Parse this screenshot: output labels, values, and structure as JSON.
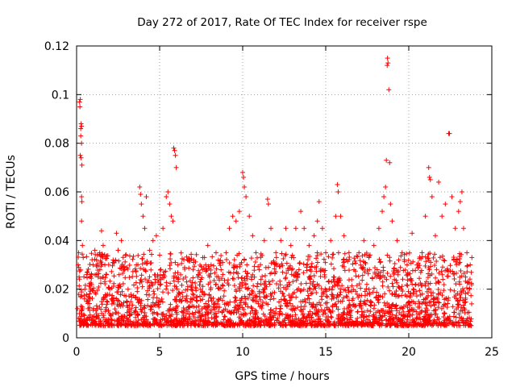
{
  "chart_data": {
    "type": "scatter",
    "title": "Day 272 of 2017, Rate Of TEC Index for receiver rspe",
    "xlabel": "GPS time / hours",
    "ylabel": "ROTI / TECUs",
    "xlim": [
      0,
      25
    ],
    "ylim": [
      0,
      0.12
    ],
    "xticks": [
      0,
      5,
      10,
      15,
      20,
      25
    ],
    "yticks": [
      0,
      0.02,
      0.04,
      0.06,
      0.08,
      0.1,
      0.12
    ],
    "xtick_labels": [
      "0",
      "5",
      "10",
      "15",
      "20",
      "25"
    ],
    "ytick_labels": [
      "0",
      "0.02",
      "0.04",
      "0.06",
      "0.08",
      "0.1",
      "0.12"
    ],
    "grid": true,
    "marker": "+",
    "color": "#ff0000",
    "series": [
      {
        "points": [
          [
            0.05,
            0.012
          ],
          [
            0.1,
            0.03
          ],
          [
            0.12,
            0.035
          ],
          [
            0.15,
            0.025
          ],
          [
            0.18,
            0.097
          ],
          [
            0.2,
            0.095
          ],
          [
            0.22,
            0.098
          ],
          [
            0.25,
            0.086
          ],
          [
            0.27,
            0.088
          ],
          [
            0.3,
            0.087
          ],
          [
            0.25,
            0.083
          ],
          [
            0.3,
            0.08
          ],
          [
            0.22,
            0.075
          ],
          [
            0.27,
            0.074
          ],
          [
            0.32,
            0.071
          ],
          [
            0.3,
            0.058
          ],
          [
            0.32,
            0.056
          ],
          [
            0.3,
            0.048
          ],
          [
            0.35,
            0.038
          ],
          [
            0.4,
            0.033
          ],
          [
            0.5,
            0.02
          ],
          [
            0.6,
            0.015
          ],
          [
            0.7,
            0.012
          ],
          [
            0.8,
            0.016
          ],
          [
            0.9,
            0.022
          ],
          [
            1.0,
            0.03
          ],
          [
            1.1,
            0.036
          ],
          [
            1.2,
            0.032
          ],
          [
            1.3,
            0.025
          ],
          [
            1.4,
            0.028
          ],
          [
            1.5,
            0.044
          ],
          [
            1.6,
            0.038
          ],
          [
            1.7,
            0.03
          ],
          [
            1.8,
            0.026
          ],
          [
            2.0,
            0.02
          ],
          [
            2.2,
            0.032
          ],
          [
            2.4,
            0.043
          ],
          [
            2.5,
            0.036
          ],
          [
            2.7,
            0.04
          ],
          [
            2.9,
            0.028
          ],
          [
            3.1,
            0.02
          ],
          [
            3.3,
            0.012
          ],
          [
            3.6,
            0.03
          ],
          [
            3.8,
            0.062
          ],
          [
            3.85,
            0.059
          ],
          [
            3.9,
            0.055
          ],
          [
            4.0,
            0.05
          ],
          [
            4.1,
            0.045
          ],
          [
            4.2,
            0.058
          ],
          [
            4.4,
            0.036
          ],
          [
            4.6,
            0.04
          ],
          [
            4.8,
            0.042
          ],
          [
            5.0,
            0.034
          ],
          [
            5.2,
            0.045
          ],
          [
            5.4,
            0.058
          ],
          [
            5.5,
            0.06
          ],
          [
            5.6,
            0.055
          ],
          [
            5.7,
            0.05
          ],
          [
            5.8,
            0.048
          ],
          [
            5.85,
            0.078
          ],
          [
            5.9,
            0.077
          ],
          [
            5.95,
            0.075
          ],
          [
            6.0,
            0.07
          ],
          [
            6.1,
            0.03
          ],
          [
            6.3,
            0.015
          ],
          [
            6.6,
            0.01
          ],
          [
            7.0,
            0.018
          ],
          [
            7.3,
            0.025
          ],
          [
            7.6,
            0.033
          ],
          [
            7.9,
            0.038
          ],
          [
            8.1,
            0.03
          ],
          [
            8.4,
            0.022
          ],
          [
            8.7,
            0.028
          ],
          [
            9.0,
            0.035
          ],
          [
            9.2,
            0.045
          ],
          [
            9.4,
            0.05
          ],
          [
            9.6,
            0.048
          ],
          [
            9.8,
            0.052
          ],
          [
            10.0,
            0.068
          ],
          [
            10.05,
            0.066
          ],
          [
            10.1,
            0.062
          ],
          [
            10.2,
            0.058
          ],
          [
            10.4,
            0.05
          ],
          [
            10.6,
            0.042
          ],
          [
            10.8,
            0.035
          ],
          [
            11.0,
            0.028
          ],
          [
            11.3,
            0.04
          ],
          [
            11.5,
            0.057
          ],
          [
            11.55,
            0.055
          ],
          [
            11.7,
            0.045
          ],
          [
            12.0,
            0.035
          ],
          [
            12.3,
            0.04
          ],
          [
            12.6,
            0.045
          ],
          [
            12.9,
            0.038
          ],
          [
            13.2,
            0.045
          ],
          [
            13.5,
            0.052
          ],
          [
            13.7,
            0.045
          ],
          [
            14.0,
            0.038
          ],
          [
            14.3,
            0.042
          ],
          [
            14.5,
            0.048
          ],
          [
            14.6,
            0.056
          ],
          [
            14.8,
            0.045
          ],
          [
            15.0,
            0.035
          ],
          [
            15.3,
            0.04
          ],
          [
            15.6,
            0.05
          ],
          [
            15.7,
            0.063
          ],
          [
            15.75,
            0.06
          ],
          [
            15.9,
            0.05
          ],
          [
            16.1,
            0.042
          ],
          [
            16.4,
            0.035
          ],
          [
            16.7,
            0.028
          ],
          [
            17.0,
            0.035
          ],
          [
            17.3,
            0.04
          ],
          [
            17.6,
            0.033
          ],
          [
            17.9,
            0.038
          ],
          [
            18.2,
            0.045
          ],
          [
            18.4,
            0.052
          ],
          [
            18.5,
            0.058
          ],
          [
            18.6,
            0.062
          ],
          [
            18.65,
            0.073
          ],
          [
            18.7,
            0.112
          ],
          [
            18.72,
            0.115
          ],
          [
            18.75,
            0.113
          ],
          [
            18.8,
            0.102
          ],
          [
            18.85,
            0.072
          ],
          [
            18.9,
            0.055
          ],
          [
            19.0,
            0.048
          ],
          [
            19.3,
            0.04
          ],
          [
            19.6,
            0.035
          ],
          [
            19.9,
            0.03
          ],
          [
            20.2,
            0.043
          ],
          [
            20.5,
            0.03
          ],
          [
            20.8,
            0.035
          ],
          [
            21.0,
            0.05
          ],
          [
            21.2,
            0.07
          ],
          [
            21.25,
            0.066
          ],
          [
            21.3,
            0.065
          ],
          [
            21.4,
            0.058
          ],
          [
            21.6,
            0.042
          ],
          [
            21.8,
            0.064
          ],
          [
            22.0,
            0.05
          ],
          [
            22.2,
            0.055
          ],
          [
            22.4,
            0.084
          ],
          [
            22.45,
            0.084
          ],
          [
            22.6,
            0.058
          ],
          [
            22.8,
            0.045
          ],
          [
            23.0,
            0.052
          ],
          [
            23.1,
            0.056
          ],
          [
            23.2,
            0.06
          ],
          [
            23.3,
            0.045
          ],
          [
            23.5,
            0.035
          ],
          [
            23.7,
            0.03
          ],
          [
            23.8,
            0.033
          ]
        ]
      }
    ]
  }
}
